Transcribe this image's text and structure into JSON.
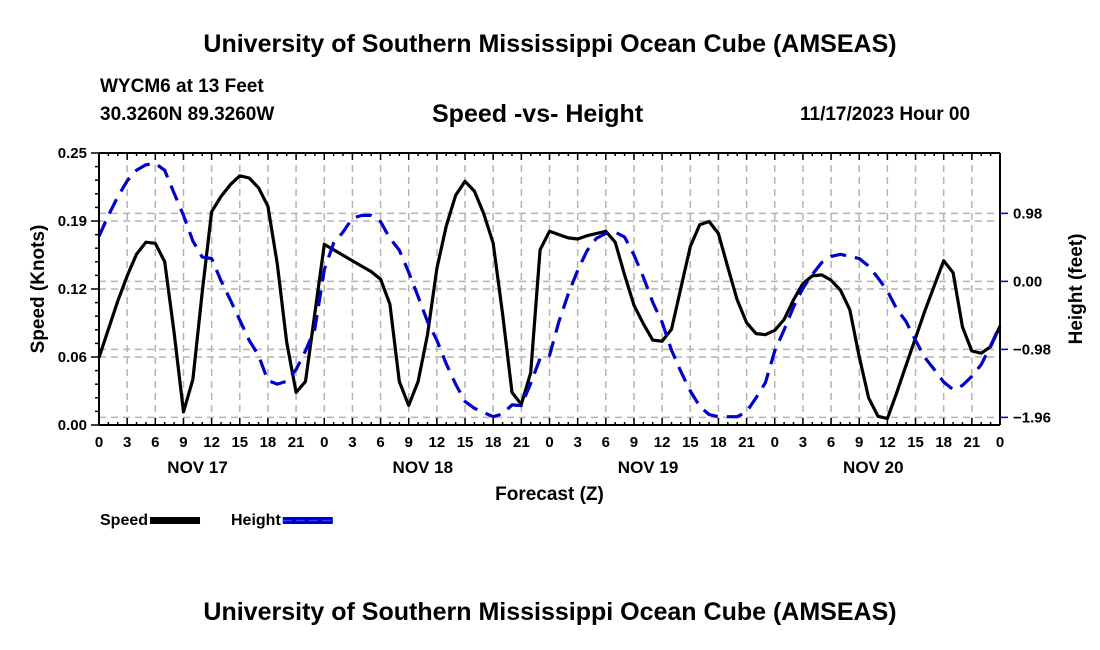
{
  "header": {
    "main_title": "University of Southern Mississippi Ocean Cube (AMSEAS)",
    "station": "WYCM6 at 13 Feet",
    "coordinates": "30.3260N  89.3260W",
    "chart_title": "Speed -vs- Height",
    "run_time": "11/17/2023 Hour 00"
  },
  "footer": {
    "title": "University of Southern Mississippi Ocean Cube (AMSEAS)"
  },
  "colors": {
    "speed": "#000000",
    "height": "#0000cc",
    "grid": "#b4b4b4"
  },
  "chart_data": {
    "type": "line",
    "title": "Speed -vs- Height",
    "xlabel": "Forecast (Z)",
    "ylabel": "Speed (Knots)",
    "y2label": "Height (feet)",
    "x_unit": "forecast hour",
    "xlim": [
      0,
      96
    ],
    "ylim": [
      0,
      0.25
    ],
    "y2lim": [
      -2.07,
      1.85
    ],
    "grid": true,
    "legend_position": "bottom-left",
    "x_ticks": [
      0,
      3,
      6,
      9,
      12,
      15,
      18,
      21,
      24,
      27,
      30,
      33,
      36,
      39,
      42,
      45,
      48,
      51,
      54,
      57,
      60,
      63,
      66,
      69,
      72,
      75,
      78,
      81,
      84,
      87,
      90,
      93,
      96
    ],
    "x_tick_labels": [
      "0",
      "3",
      "6",
      "9",
      "12",
      "15",
      "18",
      "21",
      "0",
      "3",
      "6",
      "9",
      "12",
      "15",
      "18",
      "21",
      "0",
      "3",
      "6",
      "9",
      "12",
      "15",
      "18",
      "21",
      "0",
      "3",
      "6",
      "9",
      "12",
      "15",
      "18",
      "21",
      "0"
    ],
    "day_labels": [
      {
        "hour": 10.5,
        "label": "NOV 17"
      },
      {
        "hour": 34.5,
        "label": "NOV 18"
      },
      {
        "hour": 58.5,
        "label": "NOV 19"
      },
      {
        "hour": 82.5,
        "label": "NOV 20"
      }
    ],
    "y_ticks": [
      0,
      0.0625,
      0.125,
      0.1875,
      0.25
    ],
    "y_tick_labels": [
      "0.00",
      "0.06",
      "0.12",
      "0.19",
      "0.25"
    ],
    "y2_ticks": [
      0.98,
      0.0,
      -0.98,
      -1.96
    ],
    "y2_tick_labels": [
      "0.98",
      "0.00",
      "−0.98",
      "−1.96"
    ],
    "series": [
      {
        "name": "Speed",
        "axis": "left",
        "style": "solid",
        "x": [
          0,
          1,
          2,
          3,
          4,
          5,
          6,
          7,
          8,
          9,
          10,
          11,
          12,
          13,
          14,
          15,
          16,
          17,
          18,
          19,
          20,
          21,
          22,
          23,
          24,
          25,
          26,
          27,
          28,
          29,
          30,
          31,
          32,
          33,
          34,
          35,
          36,
          37,
          38,
          39,
          40,
          41,
          42,
          43,
          44,
          45,
          46,
          47,
          48,
          49,
          50,
          51,
          52,
          53,
          54,
          55,
          56,
          57,
          58,
          59,
          60,
          61,
          62,
          63,
          64,
          65,
          66,
          67,
          68,
          69,
          70,
          71,
          72,
          73,
          74,
          75,
          76,
          77,
          78,
          79,
          80,
          81,
          82,
          83,
          84,
          85,
          86,
          87,
          88,
          89,
          90,
          91,
          92,
          93,
          94,
          95,
          96
        ],
        "values": [
          0.062,
          0.088,
          0.114,
          0.137,
          0.157,
          0.168,
          0.167,
          0.15,
          0.085,
          0.012,
          0.042,
          0.122,
          0.196,
          0.21,
          0.221,
          0.229,
          0.227,
          0.218,
          0.201,
          0.148,
          0.076,
          0.03,
          0.04,
          0.103,
          0.166,
          0.161,
          0.156,
          0.151,
          0.146,
          0.141,
          0.134,
          0.111,
          0.04,
          0.018,
          0.04,
          0.083,
          0.144,
          0.183,
          0.211,
          0.224,
          0.215,
          0.194,
          0.167,
          0.102,
          0.03,
          0.019,
          0.048,
          0.161,
          0.178,
          0.175,
          0.172,
          0.171,
          0.174,
          0.176,
          0.178,
          0.168,
          0.138,
          0.11,
          0.093,
          0.078,
          0.077,
          0.088,
          0.126,
          0.164,
          0.184,
          0.187,
          0.176,
          0.145,
          0.115,
          0.094,
          0.084,
          0.083,
          0.087,
          0.097,
          0.115,
          0.13,
          0.137,
          0.138,
          0.133,
          0.124,
          0.106,
          0.063,
          0.025,
          0.008,
          0.006,
          0.03,
          0.055,
          0.08,
          0.105,
          0.128,
          0.151,
          0.14,
          0.09,
          0.068,
          0.066,
          0.072,
          0.091
        ]
      },
      {
        "name": "Height",
        "axis": "right",
        "style": "dashed",
        "x": [
          0,
          1,
          2,
          3,
          4,
          5,
          6,
          7,
          8,
          9,
          10,
          11,
          12,
          13,
          14,
          15,
          16,
          17,
          18,
          19,
          20,
          21,
          22,
          23,
          24,
          25,
          26,
          27,
          28,
          29,
          30,
          31,
          32,
          33,
          34,
          35,
          36,
          37,
          38,
          39,
          40,
          41,
          42,
          43,
          44,
          45,
          46,
          47,
          48,
          49,
          50,
          51,
          52,
          53,
          54,
          55,
          56,
          57,
          58,
          59,
          60,
          61,
          62,
          63,
          64,
          65,
          66,
          67,
          68,
          69,
          70,
          71,
          72,
          73,
          74,
          75,
          76,
          77,
          78,
          79,
          80,
          81,
          82,
          83,
          84,
          85,
          86,
          87,
          88,
          89,
          90,
          91,
          92,
          93,
          94,
          95,
          96
        ],
        "values": [
          0.65,
          0.95,
          1.22,
          1.45,
          1.6,
          1.68,
          1.7,
          1.6,
          1.27,
          0.95,
          0.58,
          0.35,
          0.33,
          0.01,
          -0.27,
          -0.56,
          -0.85,
          -1.07,
          -1.43,
          -1.48,
          -1.44,
          -1.27,
          -1.0,
          -0.68,
          0.17,
          0.55,
          0.71,
          0.91,
          0.95,
          0.95,
          0.86,
          0.62,
          0.45,
          0.13,
          -0.22,
          -0.58,
          -0.85,
          -1.19,
          -1.48,
          -1.73,
          -1.83,
          -1.89,
          -1.95,
          -1.91,
          -1.78,
          -1.79,
          -1.47,
          -1.11,
          -1.07,
          -0.58,
          -0.18,
          0.16,
          0.44,
          0.62,
          0.69,
          0.71,
          0.64,
          0.38,
          0.06,
          -0.3,
          -0.59,
          -0.99,
          -1.3,
          -1.58,
          -1.8,
          -1.92,
          -1.95,
          -1.95,
          -1.95,
          -1.88,
          -1.68,
          -1.46,
          -1.0,
          -0.7,
          -0.37,
          -0.1,
          0.1,
          0.27,
          0.36,
          0.39,
          0.36,
          0.33,
          0.22,
          0.05,
          -0.14,
          -0.4,
          -0.58,
          -0.85,
          -1.1,
          -1.27,
          -1.45,
          -1.56,
          -1.5,
          -1.37,
          -1.2,
          -0.93,
          -0.63
        ]
      }
    ]
  },
  "legend": [
    {
      "label": "Speed",
      "color": "#000000",
      "style": "solid"
    },
    {
      "label": "Height",
      "color": "#0000cc",
      "style": "dashed"
    }
  ]
}
